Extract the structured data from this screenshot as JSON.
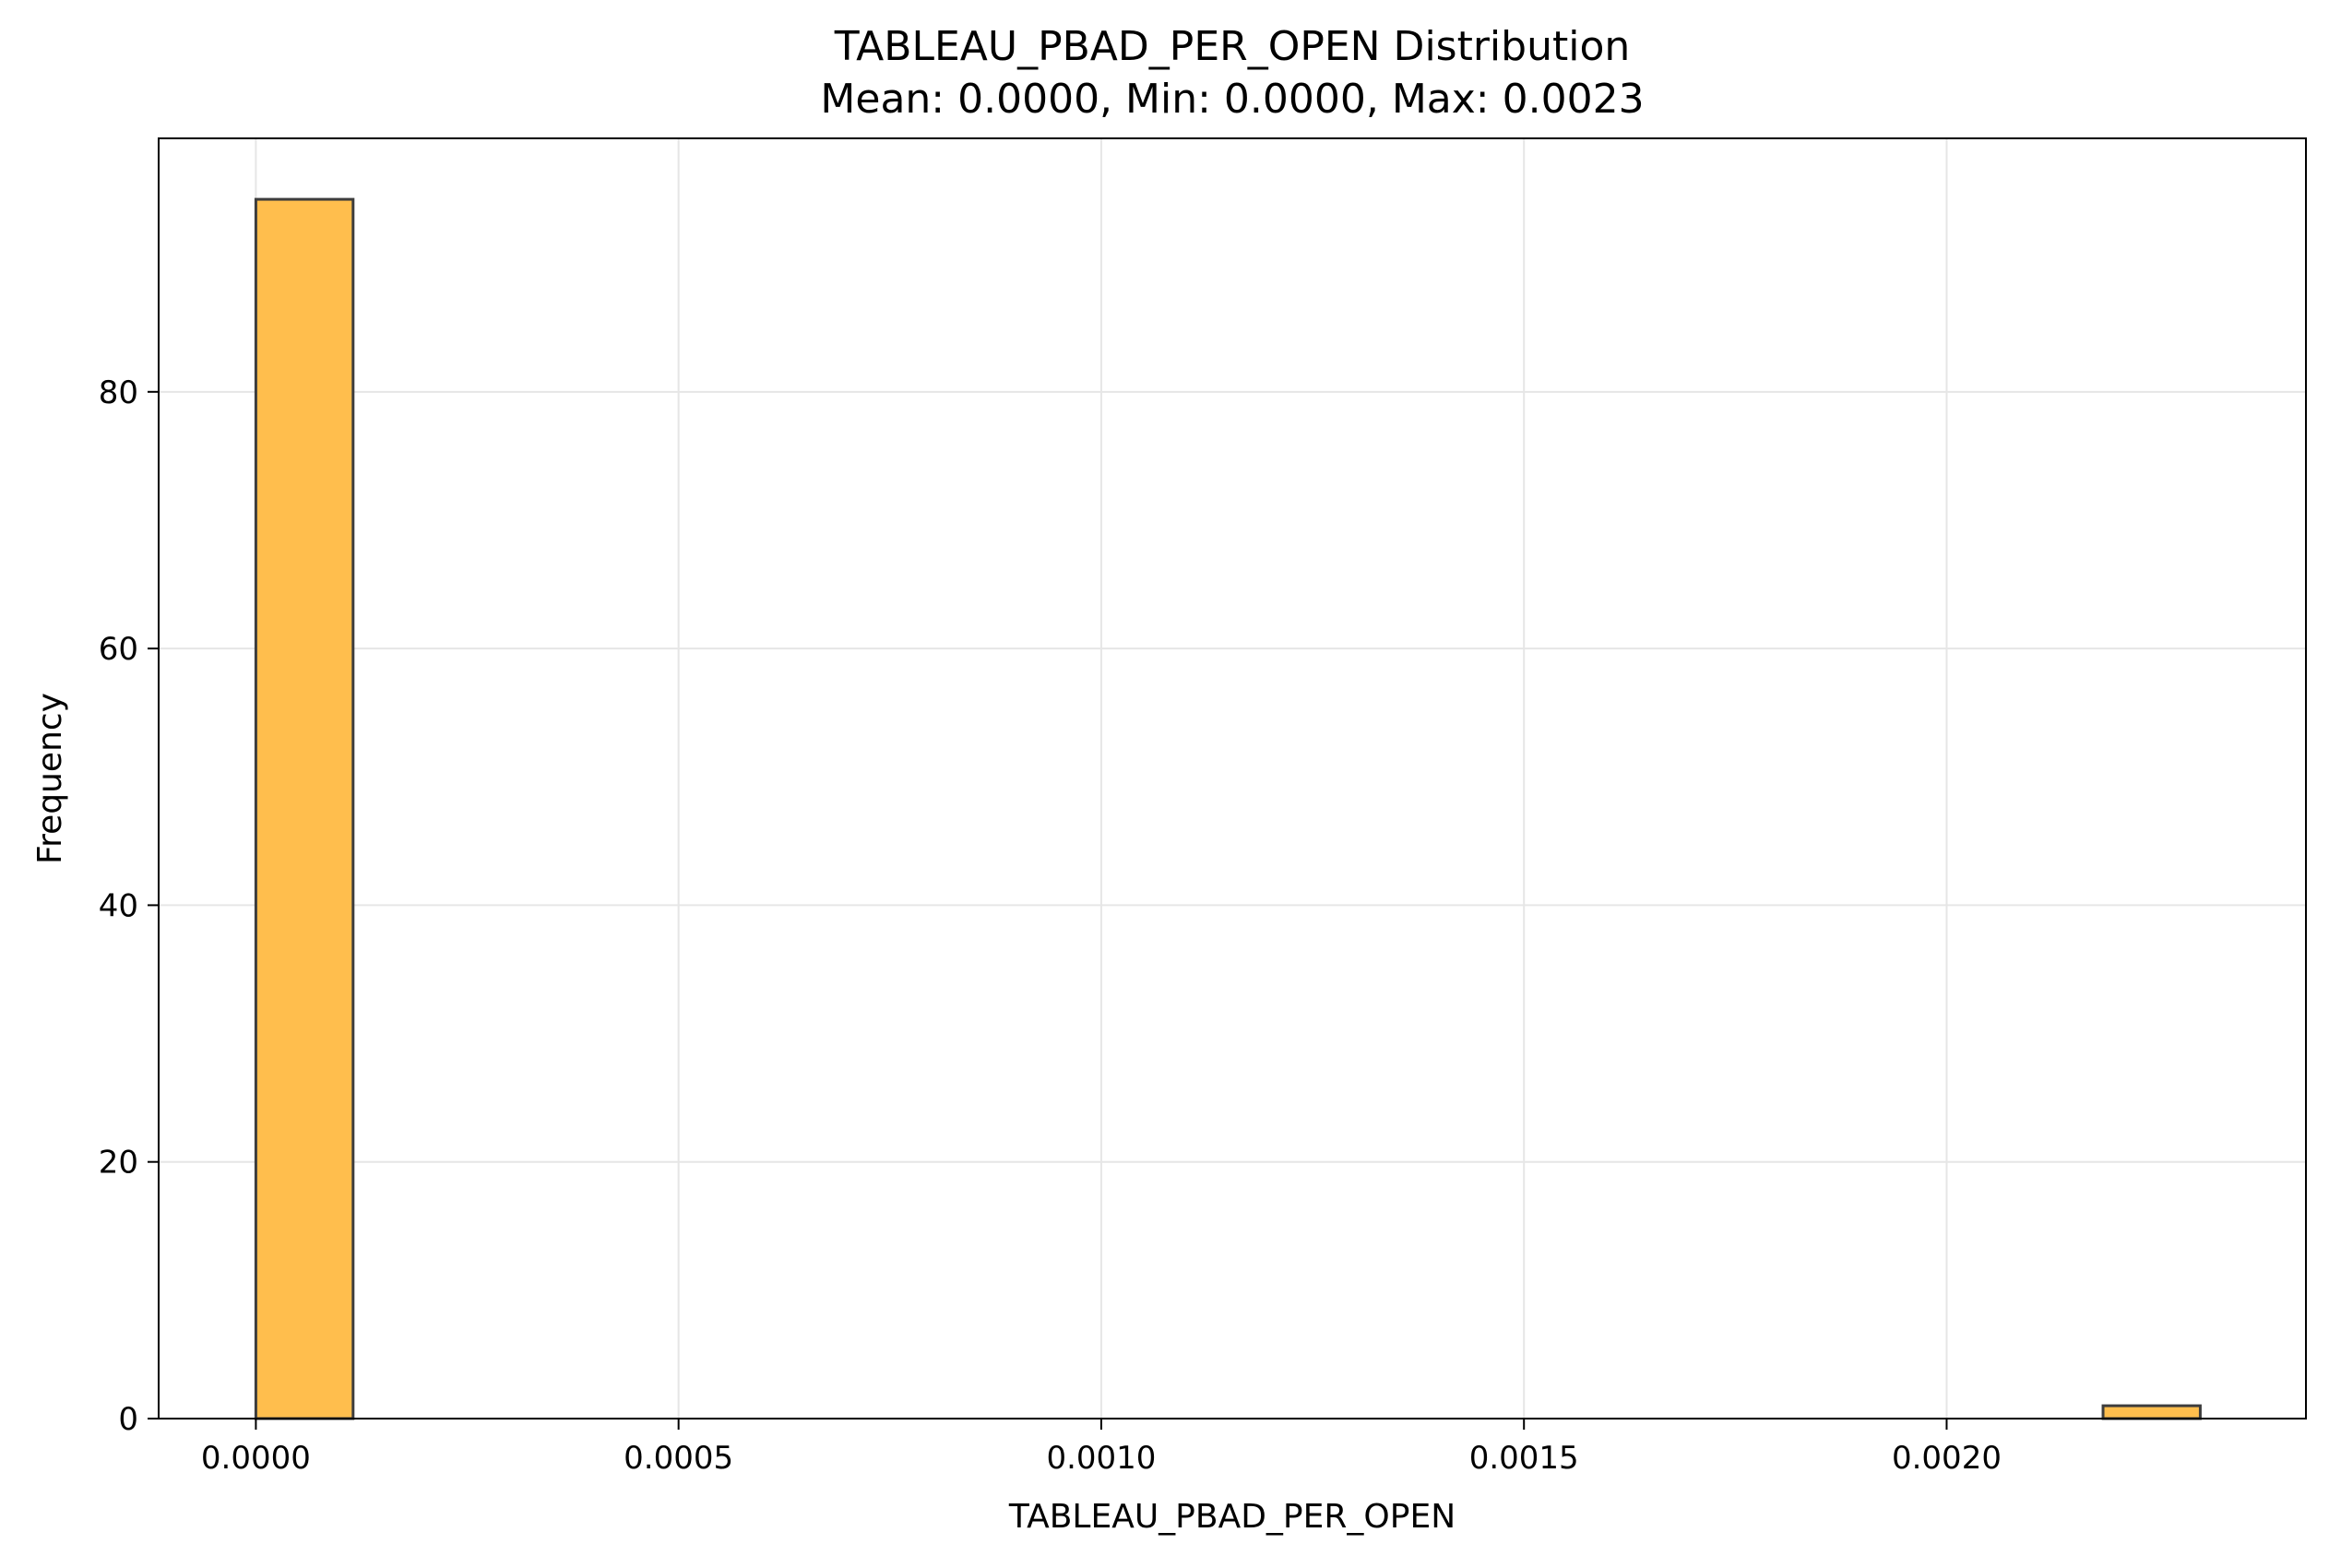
{
  "chart_data": {
    "type": "bar",
    "title": "TABLEAU_PBAD_PER_OPEN Distribution",
    "subtitle": "Mean: 0.0000, Min: 0.0000, Max: 0.0023",
    "xlabel": "TABLEAU_PBAD_PER_OPEN",
    "ylabel": "Frequency",
    "xlim": [
      -0.000115,
      0.002425
    ],
    "ylim": [
      0,
      99.75
    ],
    "x_ticks": [
      {
        "value": 0.0,
        "label": "0.0000"
      },
      {
        "value": 0.0005,
        "label": "0.0005"
      },
      {
        "value": 0.001,
        "label": "0.0010"
      },
      {
        "value": 0.0015,
        "label": "0.0015"
      },
      {
        "value": 0.002,
        "label": "0.0020"
      }
    ],
    "y_ticks": [
      {
        "value": 0,
        "label": "0"
      },
      {
        "value": 20,
        "label": "20"
      },
      {
        "value": 40,
        "label": "40"
      },
      {
        "value": 60,
        "label": "60"
      },
      {
        "value": 80,
        "label": "80"
      }
    ],
    "bin_edges": [
      0.0,
      0.000115,
      0.00023,
      0.000345,
      0.00046,
      0.000575,
      0.00069,
      0.000805,
      0.00092,
      0.001035,
      0.00115,
      0.001265,
      0.00138,
      0.001495,
      0.00161,
      0.001725,
      0.00184,
      0.001955,
      0.00207,
      0.002185,
      0.0023
    ],
    "values": [
      95,
      0,
      0,
      0,
      0,
      0,
      0,
      0,
      0,
      0,
      0,
      0,
      0,
      0,
      0,
      0,
      0,
      0,
      0,
      1
    ],
    "grid": true,
    "colors": {
      "bar_fill": "#FFBE4D",
      "bar_edge": "#3d3d3d",
      "grid": "#e6e6e6",
      "axes": "#000000"
    }
  }
}
